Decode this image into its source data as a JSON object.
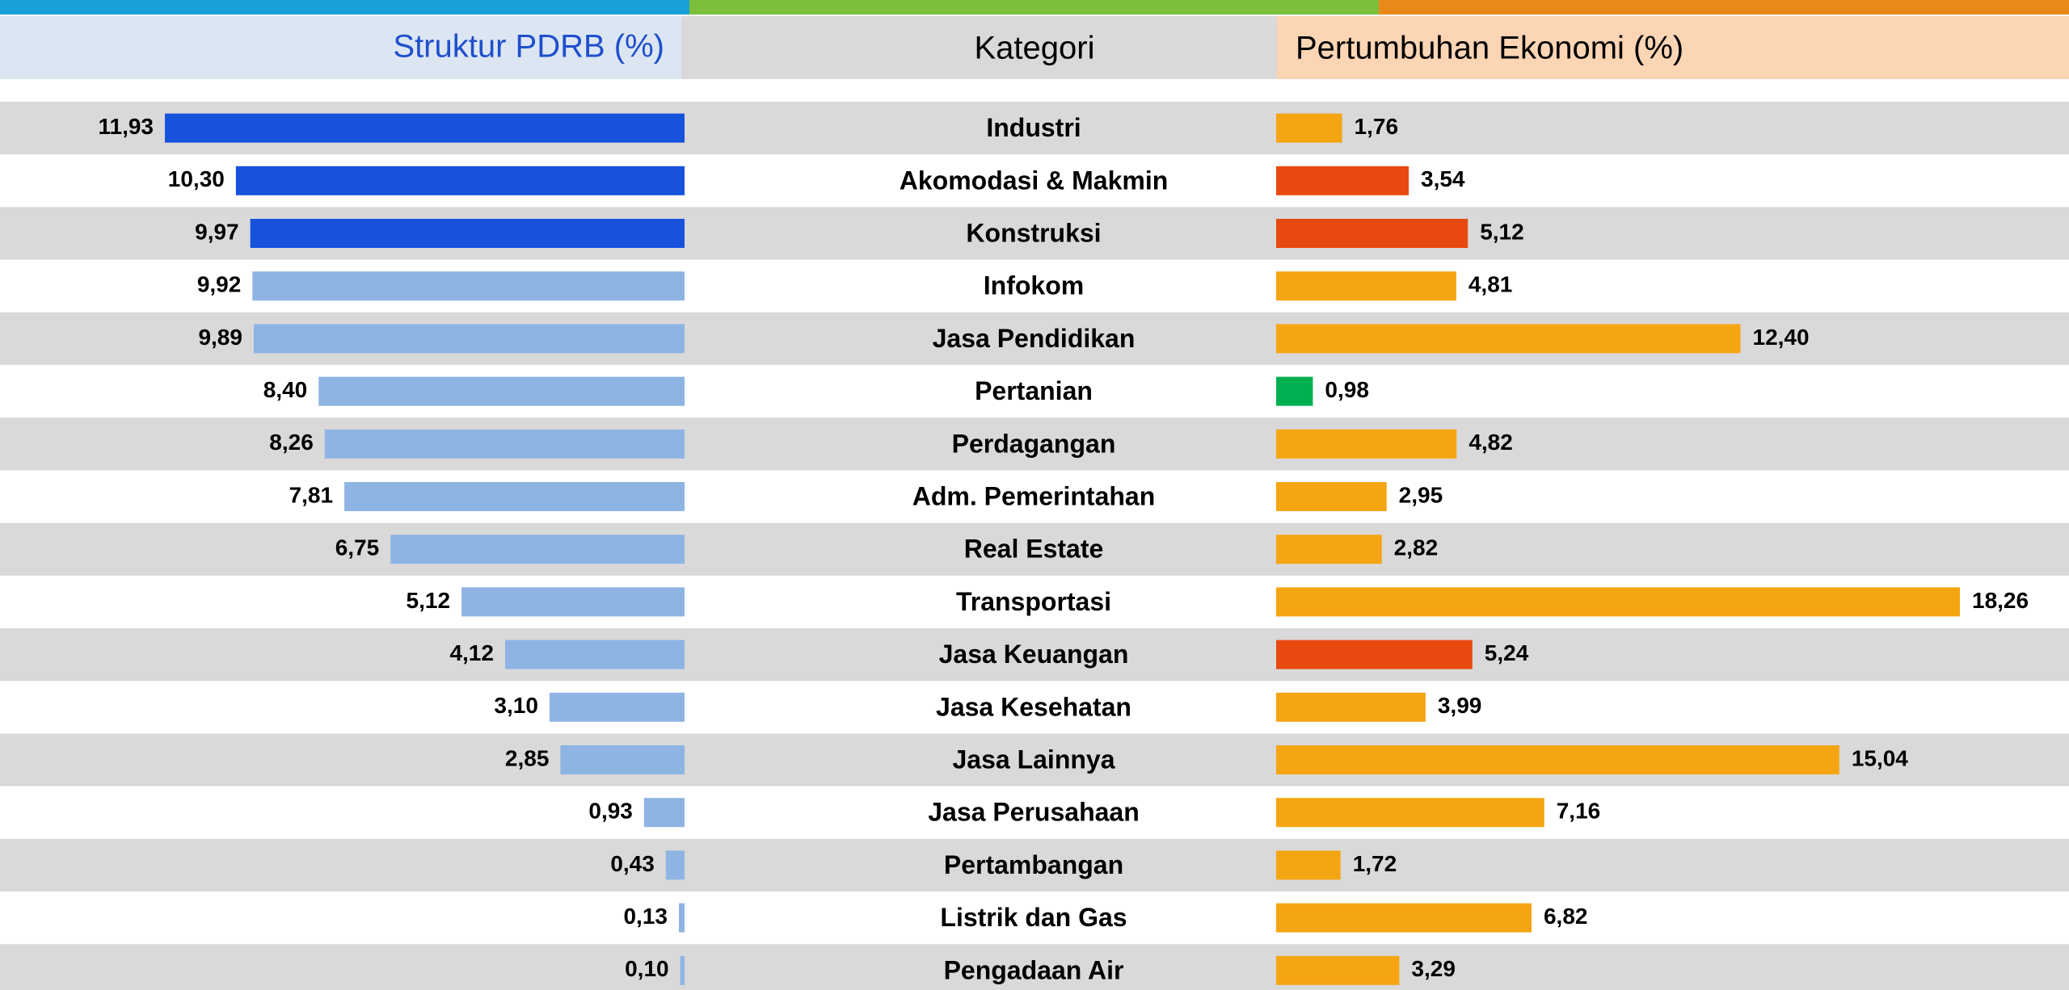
{
  "chart_data": {
    "type": "butterfly",
    "category_label": "Kategori",
    "categories": [
      "Industri",
      "Akomodasi & Makmin",
      "Konstruksi",
      "Infokom",
      "Jasa Pendidikan",
      "Pertanian",
      "Perdagangan",
      "Adm. Pemerintahan",
      "Real Estate",
      "Transportasi",
      "Jasa Keuangan",
      "Jasa Kesehatan",
      "Jasa Lainnya",
      "Jasa Perusahaan",
      "Pertambangan",
      "Listrik dan Gas",
      "Pengadaan Air"
    ],
    "series": [
      {
        "name": "Struktur PDRB (%)",
        "color": "#1f4fcc",
        "values": [
          11.93,
          10.3,
          9.97,
          9.92,
          9.89,
          8.4,
          8.26,
          7.81,
          6.75,
          5.12,
          4.12,
          3.1,
          2.85,
          0.93,
          0.43,
          0.13,
          0.1
        ],
        "value_labels": [
          "11,93",
          "10,30",
          "9,97",
          "9,92",
          "9,89",
          "8,40",
          "8,26",
          "7,81",
          "6,75",
          "5,12",
          "4,12",
          "3,10",
          "2,85",
          "0,93",
          "0,43",
          "0,13",
          "0,10"
        ],
        "colors": [
          "#1652dc",
          "#1652dc",
          "#1652dc",
          "#8eb4e3",
          "#8eb4e3",
          "#8eb4e3",
          "#8eb4e3",
          "#8eb4e3",
          "#8eb4e3",
          "#8eb4e3",
          "#8eb4e3",
          "#8eb4e3",
          "#8eb4e3",
          "#8eb4e3",
          "#8eb4e3",
          "#8eb4e3",
          "#8eb4e3"
        ]
      },
      {
        "name": "Pertumbuhan Ekonomi (%)",
        "color": "#000000",
        "values": [
          1.76,
          3.54,
          5.12,
          4.81,
          12.4,
          0.98,
          4.82,
          2.95,
          2.82,
          18.26,
          5.24,
          3.99,
          15.04,
          7.16,
          1.72,
          6.82,
          3.29
        ],
        "value_labels": [
          "1,76",
          "3,54",
          "5,12",
          "4,81",
          "12,40",
          "0,98",
          "4,82",
          "2,95",
          "2,82",
          "18,26",
          "5,24",
          "3,99",
          "15,04",
          "7,16",
          "1,72",
          "6,82",
          "3,29"
        ],
        "colors": [
          "#f5a511",
          "#e8490f",
          "#e8490f",
          "#f5a511",
          "#f5a511",
          "#00b050",
          "#f5a511",
          "#f5a511",
          "#f5a511",
          "#f5a511",
          "#e8490f",
          "#f5a511",
          "#f5a511",
          "#f5a511",
          "#f5a511",
          "#f5a511",
          "#f5a511"
        ]
      }
    ]
  }
}
